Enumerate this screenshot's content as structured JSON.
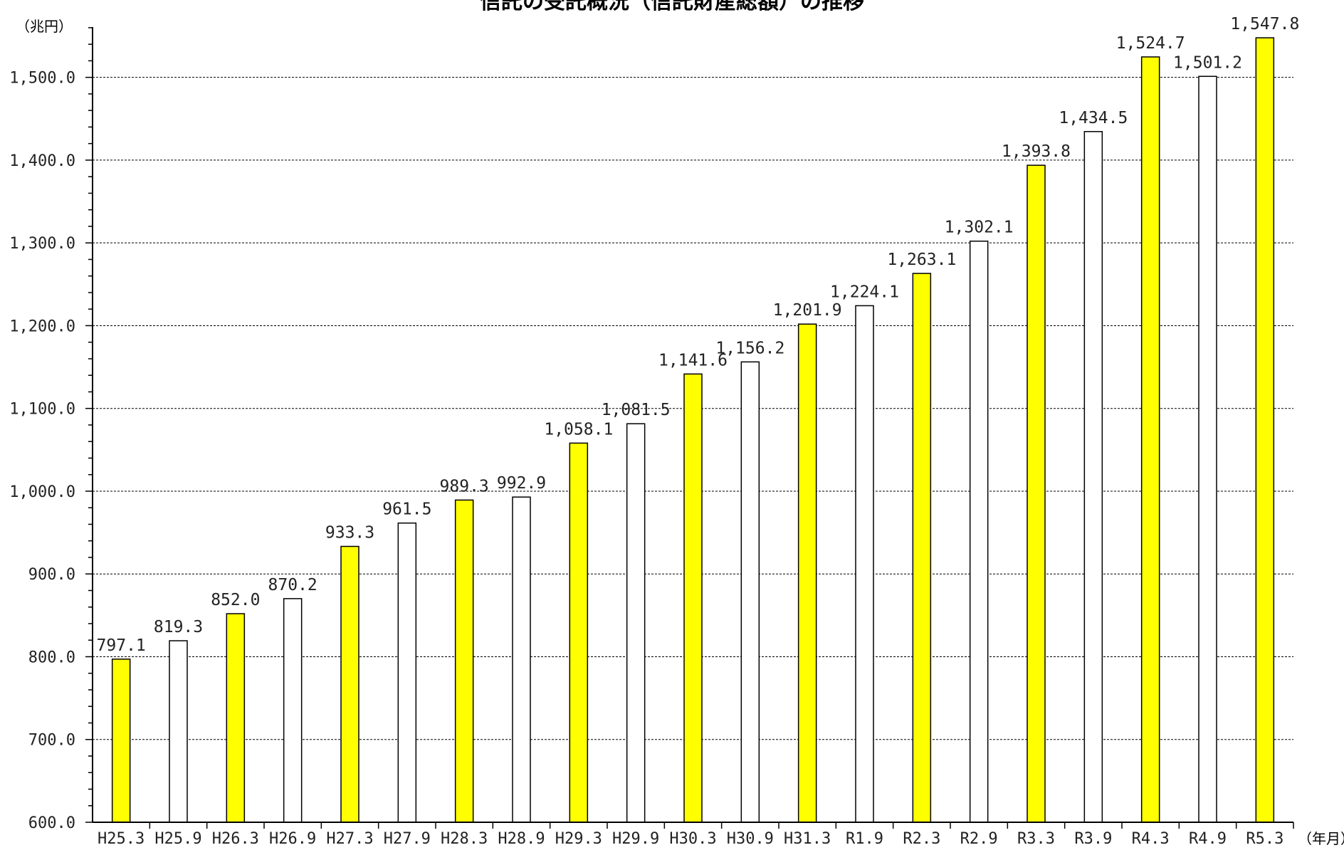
{
  "chart_data": {
    "type": "bar",
    "title": "信託の受託概況（信託財産総額）の推移",
    "ylabel": "（兆円）",
    "xlabel": "（年月）",
    "ylim": [
      600,
      1550
    ],
    "yticks": [
      "600.0",
      "700.0",
      "800.0",
      "900.0",
      "1,000.0",
      "1,100.0",
      "1,200.0",
      "1,300.0",
      "1,400.0",
      "1,500.0"
    ],
    "ytick_values": [
      600,
      700,
      800,
      900,
      1000,
      1100,
      1200,
      1300,
      1400,
      1500
    ],
    "grid": true,
    "categories": [
      "H25.3",
      "H25.9",
      "H26.3",
      "H26.9",
      "H27.3",
      "H27.9",
      "H28.3",
      "H28.9",
      "H29.3",
      "H29.9",
      "H30.3",
      "H30.9",
      "H31.3",
      "R1.9",
      "R2.3",
      "R2.9",
      "R3.3",
      "R3.9",
      "R4.3",
      "R4.9",
      "R5.3"
    ],
    "values": [
      797.1,
      819.3,
      852.0,
      870.2,
      933.3,
      961.5,
      989.3,
      992.9,
      1058.1,
      1081.5,
      1141.6,
      1156.2,
      1201.9,
      1224.1,
      1263.1,
      1302.1,
      1393.8,
      1434.5,
      1524.7,
      1501.2,
      1547.8
    ],
    "value_labels": [
      "797.1",
      "819.3",
      "852.0",
      "870.2",
      "933.3",
      "961.5",
      "989.3",
      "992.9",
      "1,058.1",
      "1,081.5",
      "1,141.6",
      "1,156.2",
      "1,201.9",
      "1,224.1",
      "1,263.1",
      "1,302.1",
      "1,393.8",
      "1,434.5",
      "1,524.7",
      "1,501.2",
      "1,547.8"
    ],
    "bar_colors": [
      "#ffff00",
      "#ffffff",
      "#ffff00",
      "#ffffff",
      "#ffff00",
      "#ffffff",
      "#ffff00",
      "#ffffff",
      "#ffff00",
      "#ffffff",
      "#ffff00",
      "#ffffff",
      "#ffff00",
      "#ffffff",
      "#ffff00",
      "#ffffff",
      "#ffff00",
      "#ffffff",
      "#ffff00",
      "#ffffff",
      "#ffff00"
    ]
  }
}
